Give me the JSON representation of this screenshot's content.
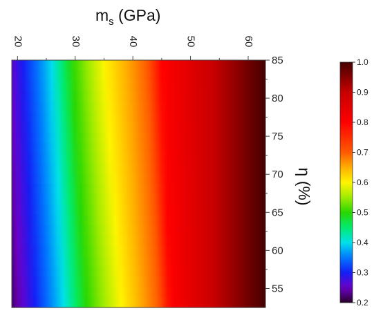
{
  "chart_data": {
    "type": "heatmap",
    "x_axis": {
      "title_main": "m",
      "title_sub": "s",
      "title_unit": " (GPa)",
      "position": "top",
      "range": [
        19,
        63
      ],
      "ticks": [
        20,
        30,
        40,
        50,
        60
      ],
      "tick_labels": [
        "20",
        "30",
        "40",
        "50",
        "60"
      ]
    },
    "y_axis": {
      "title": "η (%)",
      "position": "right",
      "range": [
        52.5,
        85
      ],
      "ticks": [
        55,
        60,
        65,
        70,
        75,
        80,
        85
      ],
      "tick_labels": [
        "55",
        "60",
        "65",
        "70",
        "75",
        "80",
        "85"
      ]
    },
    "colorbar": {
      "range": [
        0.2,
        1.0
      ],
      "ticks": [
        0.2,
        0.3,
        0.4,
        0.5,
        0.6,
        0.7,
        0.8,
        0.9,
        1.0
      ],
      "tick_labels": [
        "0.2",
        "0.3",
        "0.4",
        "0.5",
        "0.6",
        "0.7",
        "0.8",
        "0.9",
        "1.0"
      ],
      "colormap": "rainbow"
    },
    "contour_values": [
      {
        "y": 52.5,
        "m_s_at": {
          "0.3": 23.0,
          "0.4": 28.0,
          "0.5": 32.0,
          "0.6": 38.0,
          "0.7": 44.5,
          "0.8": 46.5,
          "0.9": 54.0,
          "1.0": 63.0
        }
      },
      {
        "y": 85,
        "m_s_at": {
          "0.3": 21.0,
          "0.4": 26.0,
          "0.5": 29.5,
          "0.6": 35.0,
          "0.7": 42.5,
          "0.8": 45.0,
          "0.9": 54.0,
          "1.0": 63.0
        }
      }
    ],
    "grid": false,
    "legend": "colorbar right"
  }
}
